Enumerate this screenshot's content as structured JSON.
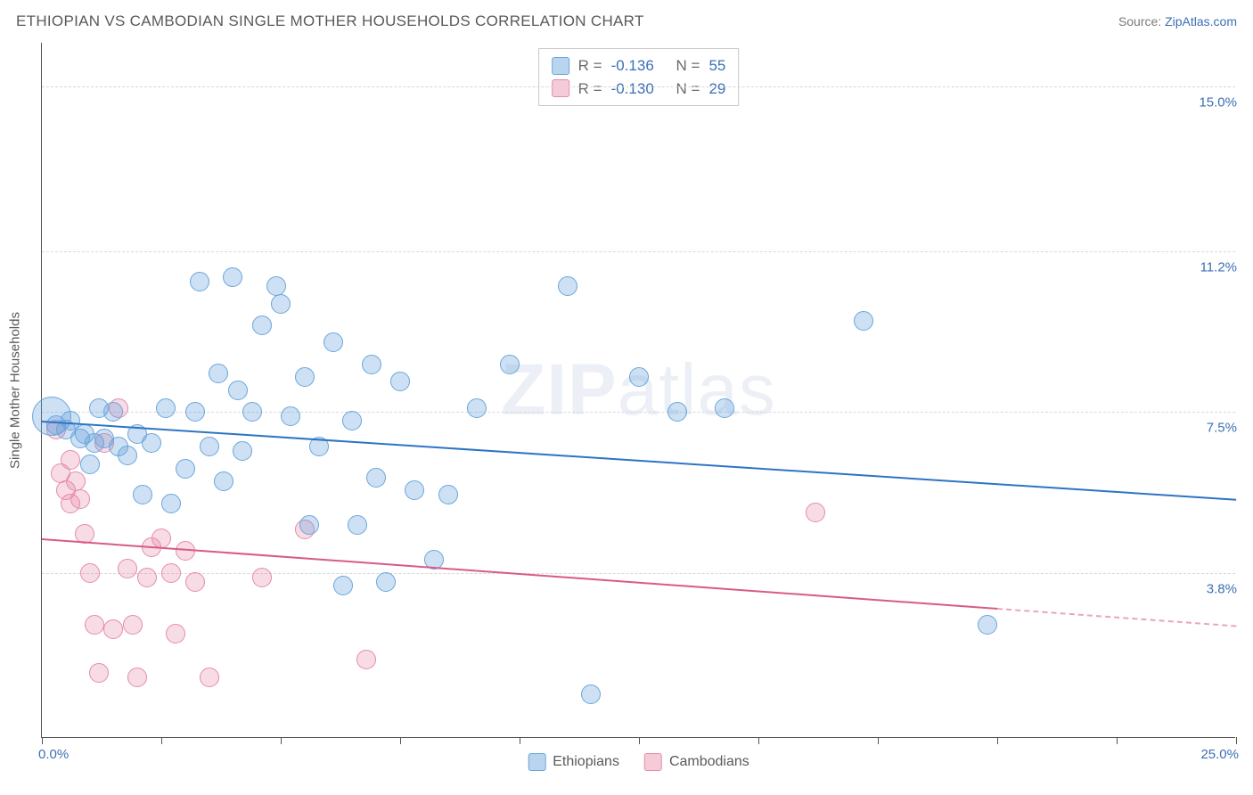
{
  "header": {
    "title": "ETHIOPIAN VS CAMBODIAN SINGLE MOTHER HOUSEHOLDS CORRELATION CHART",
    "source_label": "Source:",
    "source_link": "ZipAtlas.com"
  },
  "chart": {
    "type": "scatter",
    "yaxis_title": "Single Mother Households",
    "watermark": {
      "bold": "ZIP",
      "rest": "atlas"
    },
    "xlim": [
      0,
      25
    ],
    "ylim": [
      0,
      16
    ],
    "x_min_label": "0.0%",
    "x_max_label": "25.0%",
    "y_grid": [
      {
        "value": 15.0,
        "label": "15.0%"
      },
      {
        "value": 11.2,
        "label": "11.2%"
      },
      {
        "value": 7.5,
        "label": "7.5%"
      },
      {
        "value": 3.8,
        "label": "3.8%"
      }
    ],
    "x_ticks": [
      0,
      2.5,
      5,
      7.5,
      10,
      12.5,
      15,
      17.5,
      20,
      22.5,
      25
    ],
    "background_color": "#ffffff",
    "grid_color": "#d8d8d8",
    "colors": {
      "blue_fill": "rgba(100,160,220,0.32)",
      "blue_stroke": "#6aa6db",
      "blue_line": "#2d74c4",
      "pink_fill": "rgba(230,130,160,0.28)",
      "pink_stroke": "#e58aac",
      "pink_line": "#d85a8a",
      "axis_label": "#3b6fb5"
    },
    "marker_radius_default": 11,
    "stats": [
      {
        "series": "blue",
        "R_label": "R =",
        "R": "-0.136",
        "N_label": "N =",
        "N": "55"
      },
      {
        "series": "pink",
        "R_label": "R =",
        "R": "-0.130",
        "N_label": "N =",
        "N": "29"
      }
    ],
    "legend": [
      {
        "series": "blue",
        "label": "Ethiopians"
      },
      {
        "series": "pink",
        "label": "Cambodians"
      }
    ],
    "trend_lines": {
      "blue": {
        "x1": 0,
        "y1": 7.3,
        "x2": 25,
        "y2": 5.5
      },
      "pink": {
        "x1": 0,
        "y1": 4.6,
        "x2": 20,
        "y2": 3.0,
        "x2_dash": 25,
        "y2_dash": 2.6
      }
    },
    "series_blue": [
      {
        "x": 0.2,
        "y": 7.4,
        "r": 22
      },
      {
        "x": 0.3,
        "y": 7.2
      },
      {
        "x": 0.5,
        "y": 7.1
      },
      {
        "x": 0.6,
        "y": 7.3
      },
      {
        "x": 0.8,
        "y": 6.9
      },
      {
        "x": 0.9,
        "y": 7.0
      },
      {
        "x": 1.0,
        "y": 6.3
      },
      {
        "x": 1.1,
        "y": 6.8
      },
      {
        "x": 1.2,
        "y": 7.6
      },
      {
        "x": 1.3,
        "y": 6.9
      },
      {
        "x": 1.5,
        "y": 7.5
      },
      {
        "x": 1.6,
        "y": 6.7
      },
      {
        "x": 1.8,
        "y": 6.5
      },
      {
        "x": 2.0,
        "y": 7.0
      },
      {
        "x": 2.1,
        "y": 5.6
      },
      {
        "x": 2.3,
        "y": 6.8
      },
      {
        "x": 2.6,
        "y": 7.6
      },
      {
        "x": 2.7,
        "y": 5.4
      },
      {
        "x": 3.0,
        "y": 6.2
      },
      {
        "x": 3.2,
        "y": 7.5
      },
      {
        "x": 3.3,
        "y": 10.5
      },
      {
        "x": 3.5,
        "y": 6.7
      },
      {
        "x": 3.7,
        "y": 8.4
      },
      {
        "x": 3.8,
        "y": 5.9
      },
      {
        "x": 4.0,
        "y": 10.6
      },
      {
        "x": 4.2,
        "y": 6.6
      },
      {
        "x": 4.4,
        "y": 7.5
      },
      {
        "x": 4.6,
        "y": 9.5
      },
      {
        "x": 4.9,
        "y": 10.4
      },
      {
        "x": 5.2,
        "y": 7.4
      },
      {
        "x": 5.5,
        "y": 8.3
      },
      {
        "x": 5.6,
        "y": 4.9
      },
      {
        "x": 5.8,
        "y": 6.7
      },
      {
        "x": 6.1,
        "y": 9.1
      },
      {
        "x": 6.3,
        "y": 3.5
      },
      {
        "x": 6.5,
        "y": 7.3
      },
      {
        "x": 6.6,
        "y": 4.9
      },
      {
        "x": 6.9,
        "y": 8.6
      },
      {
        "x": 7.2,
        "y": 3.6
      },
      {
        "x": 7.5,
        "y": 8.2
      },
      {
        "x": 7.8,
        "y": 5.7
      },
      {
        "x": 8.2,
        "y": 4.1
      },
      {
        "x": 8.5,
        "y": 5.6
      },
      {
        "x": 9.1,
        "y": 7.6
      },
      {
        "x": 9.8,
        "y": 8.6
      },
      {
        "x": 11.0,
        "y": 10.4
      },
      {
        "x": 11.5,
        "y": 1.0
      },
      {
        "x": 12.5,
        "y": 8.3
      },
      {
        "x": 13.3,
        "y": 7.5
      },
      {
        "x": 14.3,
        "y": 7.6
      },
      {
        "x": 17.2,
        "y": 9.6
      },
      {
        "x": 19.8,
        "y": 2.6
      },
      {
        "x": 5.0,
        "y": 10.0
      },
      {
        "x": 4.1,
        "y": 8.0
      },
      {
        "x": 7.0,
        "y": 6.0
      }
    ],
    "series_pink": [
      {
        "x": 0.3,
        "y": 7.1
      },
      {
        "x": 0.4,
        "y": 6.1
      },
      {
        "x": 0.5,
        "y": 5.7
      },
      {
        "x": 0.6,
        "y": 5.4
      },
      {
        "x": 0.7,
        "y": 5.9
      },
      {
        "x": 0.8,
        "y": 5.5
      },
      {
        "x": 0.9,
        "y": 4.7
      },
      {
        "x": 1.0,
        "y": 3.8
      },
      {
        "x": 1.1,
        "y": 2.6
      },
      {
        "x": 1.2,
        "y": 1.5
      },
      {
        "x": 1.3,
        "y": 6.8
      },
      {
        "x": 1.5,
        "y": 2.5
      },
      {
        "x": 1.6,
        "y": 7.6
      },
      {
        "x": 1.8,
        "y": 3.9
      },
      {
        "x": 1.9,
        "y": 2.6
      },
      {
        "x": 2.0,
        "y": 1.4
      },
      {
        "x": 2.2,
        "y": 3.7
      },
      {
        "x": 2.3,
        "y": 4.4
      },
      {
        "x": 2.5,
        "y": 4.6
      },
      {
        "x": 2.7,
        "y": 3.8
      },
      {
        "x": 2.8,
        "y": 2.4
      },
      {
        "x": 3.0,
        "y": 4.3
      },
      {
        "x": 3.2,
        "y": 3.6
      },
      {
        "x": 3.5,
        "y": 1.4
      },
      {
        "x": 4.6,
        "y": 3.7
      },
      {
        "x": 5.5,
        "y": 4.8
      },
      {
        "x": 6.8,
        "y": 1.8
      },
      {
        "x": 16.2,
        "y": 5.2
      },
      {
        "x": 0.6,
        "y": 6.4
      }
    ]
  }
}
